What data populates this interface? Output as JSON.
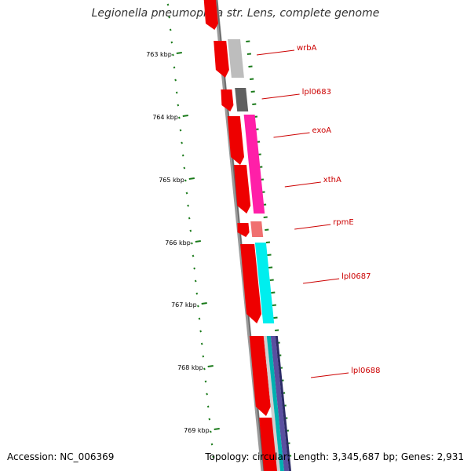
{
  "header": {
    "title": "Legionella pneumophila str. Lens, complete genome"
  },
  "footer": {
    "accession": "Accession: NC_006369",
    "summary": "Topology: circular; Length: 3,345,687 bp; Genes: 2,931"
  },
  "colors": {
    "cds_red": "#ee0000",
    "backbone": "#888888",
    "tick_green": "#1a7a1a",
    "label_red": "#cc0000"
  },
  "scale": {
    "ticks": [
      {
        "label": "763 kbp"
      },
      {
        "label": "764 kbp"
      },
      {
        "label": "765 kbp"
      },
      {
        "label": "766 kbp"
      },
      {
        "label": "767 kbp"
      },
      {
        "label": "768 kbp"
      },
      {
        "label": "769 kbp"
      }
    ]
  },
  "genes": [
    {
      "name": "wrbA",
      "color": "#bdbdbd"
    },
    {
      "name": "lpl0683",
      "color": "#606060"
    },
    {
      "name": "exoA",
      "color": "#ff1fa8"
    },
    {
      "name": "xthA",
      "color": "#ff1fa8"
    },
    {
      "name": "rpmE",
      "color": "#f07070"
    },
    {
      "name": "lpl0687",
      "color": "#00eeee"
    },
    {
      "name": "lpl0688",
      "color": "#5a4fa0"
    }
  ]
}
